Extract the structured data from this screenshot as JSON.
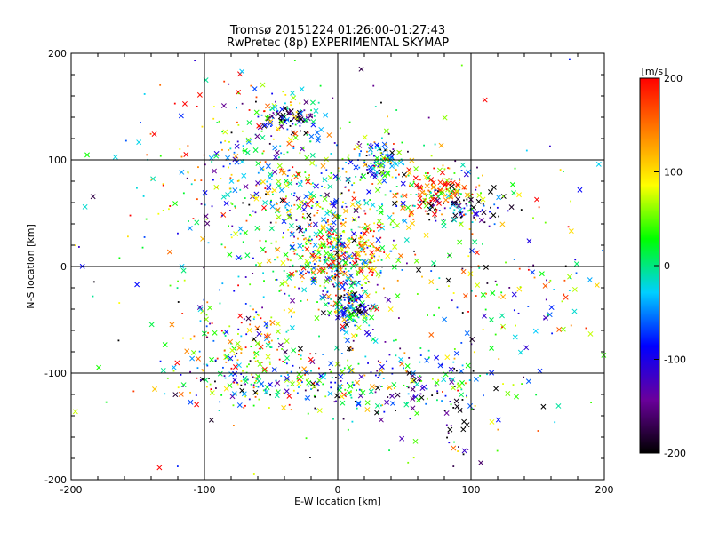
{
  "chart_data": {
    "type": "scatter",
    "title": "Tromsø 20151224 01:26:00-01:27:43",
    "subtitle": "RwPretec (8p) EXPERIMENTAL SKYMAP",
    "xlabel": "E-W location [km]",
    "ylabel": "N-S location [km]",
    "xlim": [
      -200,
      200
    ],
    "ylim": [
      -200,
      200
    ],
    "xticks": [
      "-200",
      "-100",
      "0",
      "100",
      "200"
    ],
    "yticks": [
      "-200",
      "-100",
      "0",
      "100",
      "200"
    ],
    "grid_lines": {
      "x": [
        -100,
        0,
        100
      ],
      "y": [
        -100,
        0,
        100
      ]
    },
    "colorbar": {
      "label": "[m/s]",
      "range": [
        -200,
        200
      ],
      "ticks": [
        "200",
        "100",
        "0",
        "-100",
        "-200"
      ],
      "colors": [
        "#000000",
        "#6a009c",
        "#0000ff",
        "#00d0ff",
        "#00ff00",
        "#ffff00",
        "#ff8000",
        "#ff0000"
      ]
    },
    "point_clusters": [
      {
        "x": 0,
        "y": 10,
        "sx": 22,
        "sy": 18,
        "n": 420,
        "v": 60
      },
      {
        "x": 10,
        "y": -40,
        "sx": 8,
        "sy": 12,
        "n": 150,
        "v": -60
      },
      {
        "x": 30,
        "y": 100,
        "sx": 10,
        "sy": 10,
        "n": 110,
        "v": -40
      },
      {
        "x": -35,
        "y": 140,
        "sx": 10,
        "sy": 6,
        "n": 90,
        "v": -120
      },
      {
        "x": 70,
        "y": 70,
        "sx": 18,
        "sy": 12,
        "n": 160,
        "v": 120
      },
      {
        "x": 95,
        "y": 55,
        "sx": 20,
        "sy": 8,
        "n": 90,
        "v": -150
      },
      {
        "x": -60,
        "y": 100,
        "sx": 35,
        "sy": 40,
        "n": 260,
        "v": 40
      },
      {
        "x": -50,
        "y": -110,
        "sx": 40,
        "sy": 10,
        "n": 170,
        "v": 0
      },
      {
        "x": 45,
        "y": -110,
        "sx": 45,
        "sy": 18,
        "n": 180,
        "v": -30
      },
      {
        "x": -70,
        "y": -70,
        "sx": 22,
        "sy": 18,
        "n": 110,
        "v": 80
      },
      {
        "x": 0,
        "y": 0,
        "sx": 90,
        "sy": 80,
        "n": 520,
        "v": 0
      },
      {
        "x": 150,
        "y": -20,
        "sx": 25,
        "sy": 20,
        "n": 50,
        "v": 10
      },
      {
        "x": -20,
        "y": 60,
        "sx": 30,
        "sy": 20,
        "n": 140,
        "v": -10
      },
      {
        "x": 90,
        "y": -140,
        "sx": 8,
        "sy": 25,
        "n": 35,
        "v": -200
      }
    ],
    "marker_types": [
      "x",
      "dot"
    ]
  }
}
